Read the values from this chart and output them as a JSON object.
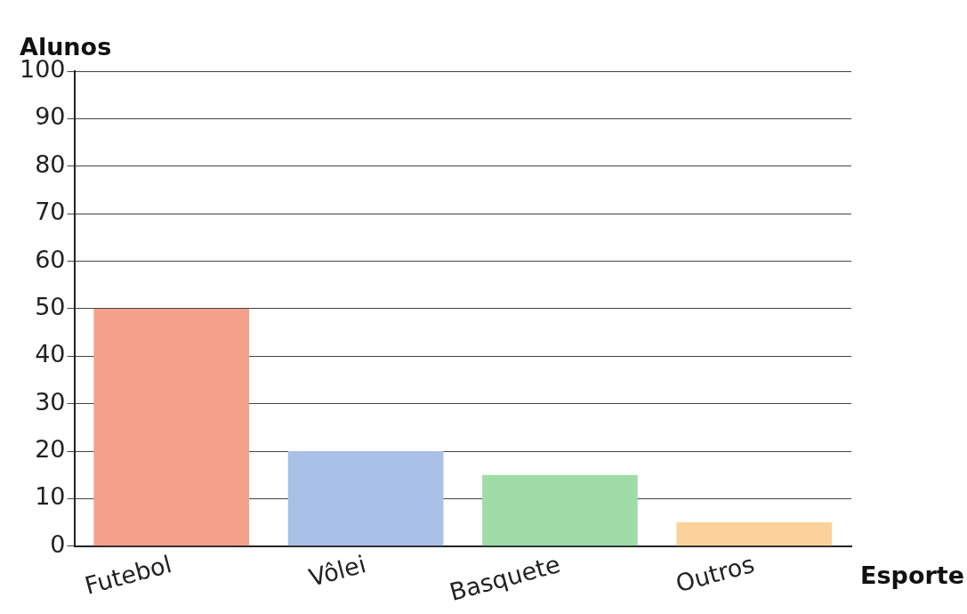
{
  "chart_data": {
    "type": "bar",
    "xlabel": "Esporte",
    "ylabel": "Alunos",
    "categories": [
      "Futebol",
      "Vôlei",
      "Basquete",
      "Outros"
    ],
    "values": [
      50,
      20,
      15,
      5
    ],
    "colors": [
      "#f4a08a",
      "#a9c0e8",
      "#9fdca8",
      "#fbd29a"
    ],
    "ylim": [
      0,
      100
    ],
    "yticks": [
      0,
      10,
      20,
      30,
      40,
      50,
      60,
      70,
      80,
      90,
      100
    ],
    "grid": "y",
    "legend": false
  }
}
